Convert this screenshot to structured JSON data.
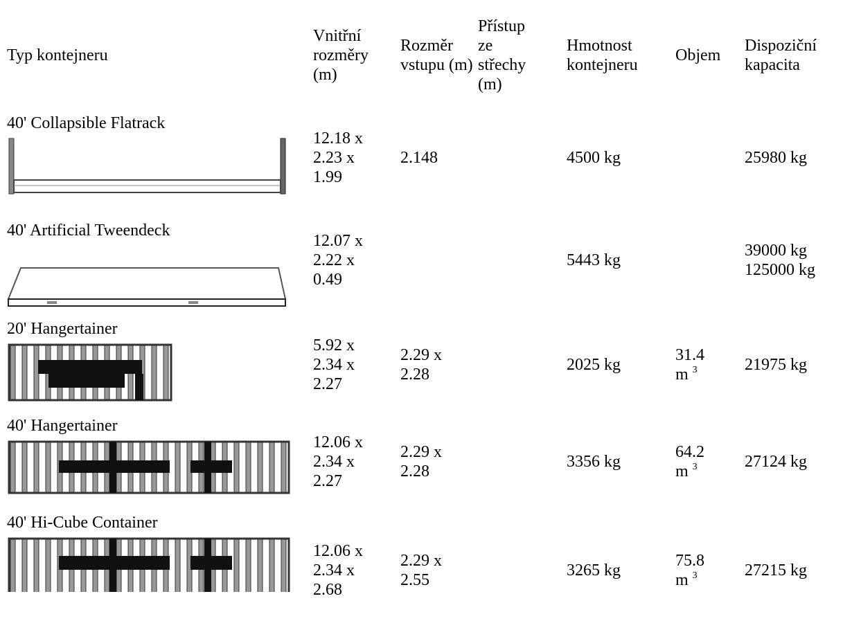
{
  "header": {
    "columns": [
      "Typ kontejneru",
      "Vnitřní rozměry (m)",
      "Rozměr vstupu (m)",
      "Přístup ze střechy (m)",
      "Hmotnost kontejneru",
      "Objem",
      "Dispoziční kapacita"
    ]
  },
  "table": {
    "rows": [
      {
        "type": "40' Collapsible Flatrack",
        "dims": "12.18 x 2.23 x 1.99",
        "entry": "2.148",
        "weight": "4500 kg",
        "capacity": [
          "25980 kg"
        ]
      },
      {
        "type": "40' Artificial Tweendeck",
        "dims": "12.07 x 2.22 x 0.49",
        "weight": "5443 kg",
        "capacity": [
          "39000 kg",
          "125000 kg"
        ]
      },
      {
        "type": "20' Hangertainer",
        "dims": "5.92 x 2.34 x 2.27",
        "entry": "2.29 x 2.28",
        "weight": "2025 kg",
        "volume": {
          "number": "31.4",
          "unit": "m",
          "exp": "3"
        },
        "capacity": [
          "21975 kg"
        ]
      },
      {
        "type": "40' Hangertainer",
        "dims": "12.06 x 2.34 x 2.27",
        "entry": "2.29 x 2.28",
        "weight": "3356 kg",
        "volume": {
          "number": "64.2",
          "unit": "m",
          "exp": "3"
        },
        "capacity": [
          "27124 kg"
        ]
      },
      {
        "type": "40' Hi-Cube Container",
        "dims": "12.06 x 2.34 x 2.68",
        "entry": "2.29 x 2.55",
        "weight": "3265 kg",
        "volume": {
          "number": "75.8",
          "unit": "m",
          "exp": "3"
        },
        "capacity": [
          "27215 kg"
        ]
      }
    ]
  }
}
